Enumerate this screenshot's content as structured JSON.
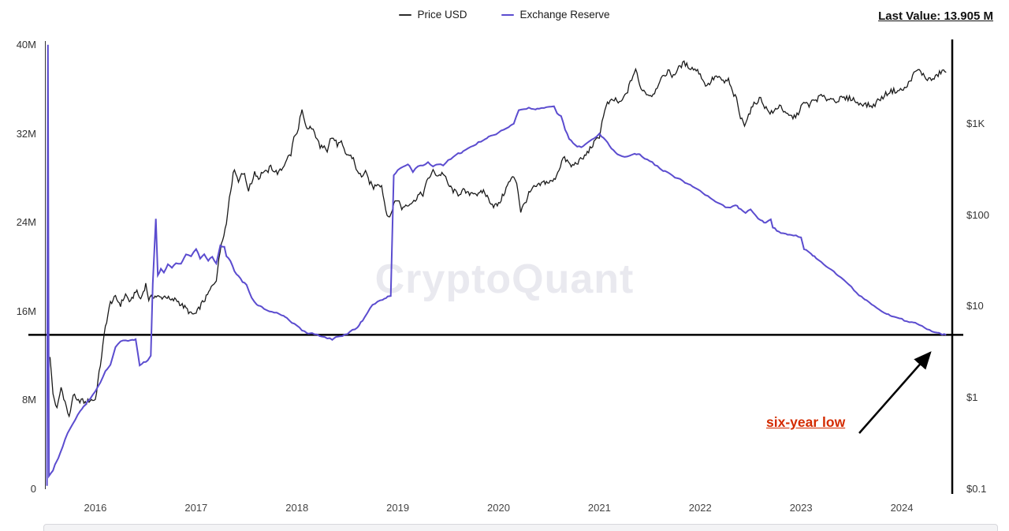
{
  "header": {
    "last_value": "Last Value: 13.905 M"
  },
  "legend": [
    {
      "label": "Price USD",
      "color": "#2a2a2a"
    },
    {
      "label": "Exchange Reserve",
      "color": "#5b4ccf"
    }
  ],
  "watermark": "CryptoQuant",
  "annotations": {
    "six_year_low_label": "six-year low",
    "six_year_low_color": "#d42b00",
    "horizontal_line_value_millions": 13.9
  },
  "chart_data": {
    "type": "line",
    "title": "",
    "legend_position": "top-center",
    "grid": false,
    "x_axis": {
      "range": [
        2015.5,
        2024.5
      ],
      "tick_years": [
        2016,
        2017,
        2018,
        2019,
        2020,
        2021,
        2022,
        2023,
        2024
      ],
      "tick_labels": [
        "2016",
        "2017",
        "2018",
        "2019",
        "2020",
        "2021",
        "2022",
        "2023",
        "2024"
      ]
    },
    "y_left": {
      "unit": "millions",
      "scale": "linear",
      "range": [
        0,
        40
      ],
      "tick_values": [
        0,
        8,
        16,
        24,
        32,
        40
      ],
      "tick_labels": [
        "0",
        "8M",
        "16M",
        "24M",
        "32M",
        "40M"
      ]
    },
    "y_right": {
      "unit": "USD",
      "scale": "log",
      "range": [
        0.1,
        7000
      ],
      "tick_values": [
        0.1,
        1,
        10,
        100,
        1000
      ],
      "tick_labels": [
        "$0.1",
        "$1",
        "$10",
        "$100",
        "$1K"
      ]
    },
    "series": [
      {
        "name": "Price USD",
        "axis": "right",
        "color": "#1a1a1a",
        "x": [
          2015.55,
          2015.58,
          2015.62,
          2015.66,
          2015.7,
          2015.74,
          2015.78,
          2015.82,
          2015.86,
          2015.9,
          2015.95,
          2016.0,
          2016.05,
          2016.1,
          2016.15,
          2016.2,
          2016.25,
          2016.3,
          2016.35,
          2016.4,
          2016.45,
          2016.5,
          2016.53,
          2016.58,
          2016.65,
          2016.7,
          2016.75,
          2016.8,
          2016.85,
          2016.9,
          2016.95,
          2017.0,
          2017.05,
          2017.1,
          2017.15,
          2017.2,
          2017.25,
          2017.3,
          2017.33,
          2017.38,
          2017.42,
          2017.45,
          2017.48,
          2017.52,
          2017.55,
          2017.58,
          2017.62,
          2017.66,
          2017.7,
          2017.74,
          2017.78,
          2017.82,
          2017.86,
          2017.9,
          2017.94,
          2017.97,
          2018.0,
          2018.03,
          2018.05,
          2018.08,
          2018.1,
          2018.13,
          2018.16,
          2018.2,
          2018.23,
          2018.27,
          2018.3,
          2018.33,
          2018.36,
          2018.4,
          2018.44,
          2018.48,
          2018.52,
          2018.56,
          2018.6,
          2018.64,
          2018.68,
          2018.72,
          2018.76,
          2018.8,
          2018.84,
          2018.88,
          2018.92,
          2018.96,
          2019.0,
          2019.04,
          2019.08,
          2019.12,
          2019.16,
          2019.2,
          2019.25,
          2019.3,
          2019.35,
          2019.4,
          2019.45,
          2019.5,
          2019.55,
          2019.6,
          2019.65,
          2019.7,
          2019.75,
          2019.8,
          2019.85,
          2019.9,
          2019.95,
          2020.0,
          2020.05,
          2020.1,
          2020.15,
          2020.18,
          2020.22,
          2020.26,
          2020.3,
          2020.35,
          2020.4,
          2020.45,
          2020.5,
          2020.55,
          2020.6,
          2020.64,
          2020.68,
          2020.72,
          2020.76,
          2020.8,
          2020.84,
          2020.88,
          2020.92,
          2020.96,
          2021.0,
          2021.04,
          2021.08,
          2021.12,
          2021.16,
          2021.2,
          2021.24,
          2021.28,
          2021.32,
          2021.36,
          2021.4,
          2021.44,
          2021.48,
          2021.52,
          2021.56,
          2021.6,
          2021.64,
          2021.68,
          2021.72,
          2021.76,
          2021.8,
          2021.84,
          2021.88,
          2021.92,
          2021.96,
          2022.0,
          2022.04,
          2022.08,
          2022.12,
          2022.16,
          2022.2,
          2022.24,
          2022.28,
          2022.32,
          2022.36,
          2022.4,
          2022.44,
          2022.48,
          2022.52,
          2022.56,
          2022.6,
          2022.64,
          2022.68,
          2022.72,
          2022.76,
          2022.8,
          2022.84,
          2022.88,
          2022.92,
          2022.96,
          2023.0,
          2023.04,
          2023.08,
          2023.12,
          2023.16,
          2023.2,
          2023.24,
          2023.28,
          2023.32,
          2023.36,
          2023.4,
          2023.44,
          2023.48,
          2023.52,
          2023.56,
          2023.6,
          2023.64,
          2023.68,
          2023.72,
          2023.76,
          2023.8,
          2023.84,
          2023.88,
          2023.92,
          2023.96,
          2024.0,
          2024.04,
          2024.08,
          2024.12,
          2024.16,
          2024.2,
          2024.24,
          2024.28,
          2024.32,
          2024.36,
          2024.4,
          2024.44
        ],
        "values": [
          2.8,
          1.1,
          0.75,
          1.3,
          0.9,
          0.6,
          1.1,
          0.9,
          0.95,
          0.88,
          0.95,
          0.95,
          2.3,
          6,
          11,
          12.5,
          10.5,
          13.5,
          11,
          15,
          12,
          17.5,
          12,
          13,
          12.5,
          13,
          11.5,
          12,
          10.5,
          9.5,
          8.2,
          8.3,
          10.5,
          12.5,
          16,
          20,
          50,
          80,
          160,
          330,
          230,
          300,
          270,
          190,
          225,
          300,
          250,
          300,
          290,
          340,
          300,
          290,
          330,
          420,
          460,
          720,
          760,
          1150,
          1350,
          980,
          850,
          920,
          830,
          700,
          530,
          600,
          520,
          680,
          700,
          590,
          610,
          470,
          450,
          420,
          290,
          270,
          290,
          230,
          200,
          225,
          210,
          115,
          90,
          135,
          150,
          118,
          130,
          135,
          140,
          165,
          170,
          250,
          300,
          270,
          290,
          215,
          185,
          170,
          185,
          170,
          180,
          165,
          185,
          150,
          127,
          130,
          170,
          225,
          265,
          230,
          110,
          135,
          170,
          200,
          210,
          230,
          228,
          240,
          320,
          420,
          390,
          340,
          365,
          390,
          420,
          480,
          560,
          640,
          735,
          1250,
          1650,
          1750,
          1850,
          1650,
          1900,
          2300,
          3100,
          3950,
          2600,
          2300,
          2100,
          2050,
          2350,
          3050,
          3200,
          3850,
          3350,
          3650,
          4250,
          4600,
          4250,
          4050,
          3900,
          3550,
          2750,
          2650,
          3050,
          3300,
          3050,
          2850,
          3000,
          2200,
          1850,
          1150,
          1000,
          1250,
          1550,
          1750,
          1900,
          1550,
          1350,
          1300,
          1500,
          1600,
          1280,
          1220,
          1180,
          1230,
          1550,
          1680,
          1600,
          1780,
          1850,
          2050,
          1850,
          1900,
          1850,
          1780,
          1900,
          1880,
          1900,
          1870,
          1650,
          1680,
          1620,
          1580,
          1560,
          1800,
          1900,
          2100,
          2250,
          2300,
          2280,
          2350,
          2450,
          2950,
          3500,
          3900,
          3550,
          3150,
          3050,
          3100,
          3450,
          3800,
          3650
        ]
      },
      {
        "name": "Exchange Reserve",
        "axis": "left",
        "color": "#5b4ccf",
        "x": [
          2015.52,
          2015.53,
          2015.54,
          2015.58,
          2015.6,
          2015.65,
          2015.7,
          2015.75,
          2015.8,
          2015.85,
          2015.9,
          2015.95,
          2016.0,
          2016.05,
          2016.1,
          2016.15,
          2016.2,
          2016.25,
          2016.3,
          2016.35,
          2016.4,
          2016.44,
          2016.48,
          2016.52,
          2016.55,
          2016.57,
          2016.6,
          2016.62,
          2016.65,
          2016.68,
          2016.72,
          2016.76,
          2016.8,
          2016.85,
          2016.9,
          2016.95,
          2017.0,
          2017.04,
          2017.08,
          2017.12,
          2017.16,
          2017.2,
          2017.24,
          2017.28,
          2017.3,
          2017.34,
          2017.38,
          2017.42,
          2017.46,
          2017.5,
          2017.55,
          2017.6,
          2017.65,
          2017.7,
          2017.75,
          2017.8,
          2017.85,
          2017.9,
          2017.95,
          2018.0,
          2018.05,
          2018.1,
          2018.15,
          2018.2,
          2018.25,
          2018.3,
          2018.35,
          2018.4,
          2018.45,
          2018.5,
          2018.55,
          2018.6,
          2018.65,
          2018.7,
          2018.75,
          2018.8,
          2018.85,
          2018.9,
          2018.93,
          2018.96,
          2019.0,
          2019.05,
          2019.1,
          2019.15,
          2019.2,
          2019.25,
          2019.3,
          2019.35,
          2019.4,
          2019.45,
          2019.5,
          2019.55,
          2019.6,
          2019.65,
          2019.7,
          2019.75,
          2019.8,
          2019.85,
          2019.9,
          2019.95,
          2020.0,
          2020.05,
          2020.1,
          2020.15,
          2020.2,
          2020.25,
          2020.3,
          2020.35,
          2020.4,
          2020.45,
          2020.5,
          2020.55,
          2020.58,
          2020.62,
          2020.66,
          2020.7,
          2020.74,
          2020.78,
          2020.82,
          2020.86,
          2020.9,
          2020.95,
          2021.0,
          2021.04,
          2021.08,
          2021.12,
          2021.16,
          2021.2,
          2021.25,
          2021.3,
          2021.35,
          2021.4,
          2021.45,
          2021.5,
          2021.55,
          2021.6,
          2021.65,
          2021.7,
          2021.75,
          2021.8,
          2021.85,
          2021.9,
          2021.95,
          2022.0,
          2022.05,
          2022.1,
          2022.15,
          2022.2,
          2022.25,
          2022.3,
          2022.35,
          2022.4,
          2022.45,
          2022.5,
          2022.55,
          2022.6,
          2022.65,
          2022.7,
          2022.72,
          2022.76,
          2022.8,
          2022.85,
          2022.9,
          2022.95,
          2023.0,
          2023.03,
          2023.07,
          2023.1,
          2023.15,
          2023.2,
          2023.25,
          2023.3,
          2023.35,
          2023.4,
          2023.45,
          2023.5,
          2023.55,
          2023.6,
          2023.65,
          2023.7,
          2023.75,
          2023.8,
          2023.85,
          2023.9,
          2023.95,
          2024.0,
          2024.05,
          2024.1,
          2024.15,
          2024.2,
          2024.25,
          2024.3,
          2024.35,
          2024.4,
          2024.44
        ],
        "values": [
          0.3,
          40,
          1.2,
          1.7,
          2.2,
          3.2,
          4.5,
          5.5,
          6.3,
          7.0,
          7.6,
          8.2,
          8.8,
          9.6,
          10.6,
          11.2,
          12.8,
          13.3,
          13.4,
          13.4,
          13.5,
          11.2,
          11.4,
          11.6,
          12.0,
          18.5,
          24.3,
          19.3,
          19.8,
          19.5,
          20.3,
          19.9,
          20.4,
          20.3,
          21.2,
          21.0,
          21.6,
          20.8,
          21.2,
          20.6,
          20.9,
          20.3,
          21.9,
          21.8,
          21.0,
          20.6,
          19.6,
          19.2,
          18.7,
          18.4,
          17.3,
          16.6,
          16.4,
          16.1,
          16.0,
          15.9,
          15.7,
          15.4,
          15.0,
          14.7,
          14.3,
          14.1,
          14.0,
          13.9,
          13.7,
          13.6,
          13.5,
          13.7,
          13.8,
          14.0,
          14.3,
          14.6,
          15.2,
          15.9,
          16.6,
          16.9,
          17.1,
          17.3,
          17.4,
          28.3,
          28.7,
          29.0,
          29.3,
          28.6,
          29.1,
          29.2,
          29.4,
          29.1,
          29.3,
          29.2,
          29.6,
          29.9,
          30.2,
          30.4,
          30.7,
          30.9,
          31.2,
          31.4,
          31.7,
          31.9,
          32.1,
          32.4,
          32.6,
          32.9,
          34.1,
          34.2,
          34.3,
          34.2,
          34.3,
          34.3,
          34.4,
          34.5,
          33.8,
          33.6,
          32.4,
          31.6,
          31.1,
          30.9,
          30.8,
          31.0,
          31.3,
          31.6,
          32.0,
          31.6,
          31.2,
          30.7,
          30.3,
          30.1,
          29.9,
          30.0,
          30.2,
          30.1,
          29.8,
          29.6,
          29.2,
          28.9,
          28.6,
          28.4,
          28.1,
          27.9,
          27.6,
          27.4,
          27.1,
          26.9,
          26.5,
          26.2,
          25.9,
          25.7,
          25.4,
          25.3,
          25.6,
          25.2,
          24.9,
          25.2,
          24.6,
          24.2,
          24.0,
          24.3,
          23.6,
          23.3,
          23.1,
          23.0,
          22.9,
          22.8,
          22.7,
          21.6,
          21.4,
          21.2,
          20.8,
          20.5,
          20.1,
          19.8,
          19.4,
          19.0,
          18.6,
          18.2,
          17.7,
          17.3,
          17.0,
          16.7,
          16.3,
          16.0,
          15.8,
          15.6,
          15.4,
          15.3,
          15.1,
          15.0,
          14.9,
          14.7,
          14.4,
          14.2,
          14.1,
          13.95,
          13.9
        ]
      }
    ]
  }
}
